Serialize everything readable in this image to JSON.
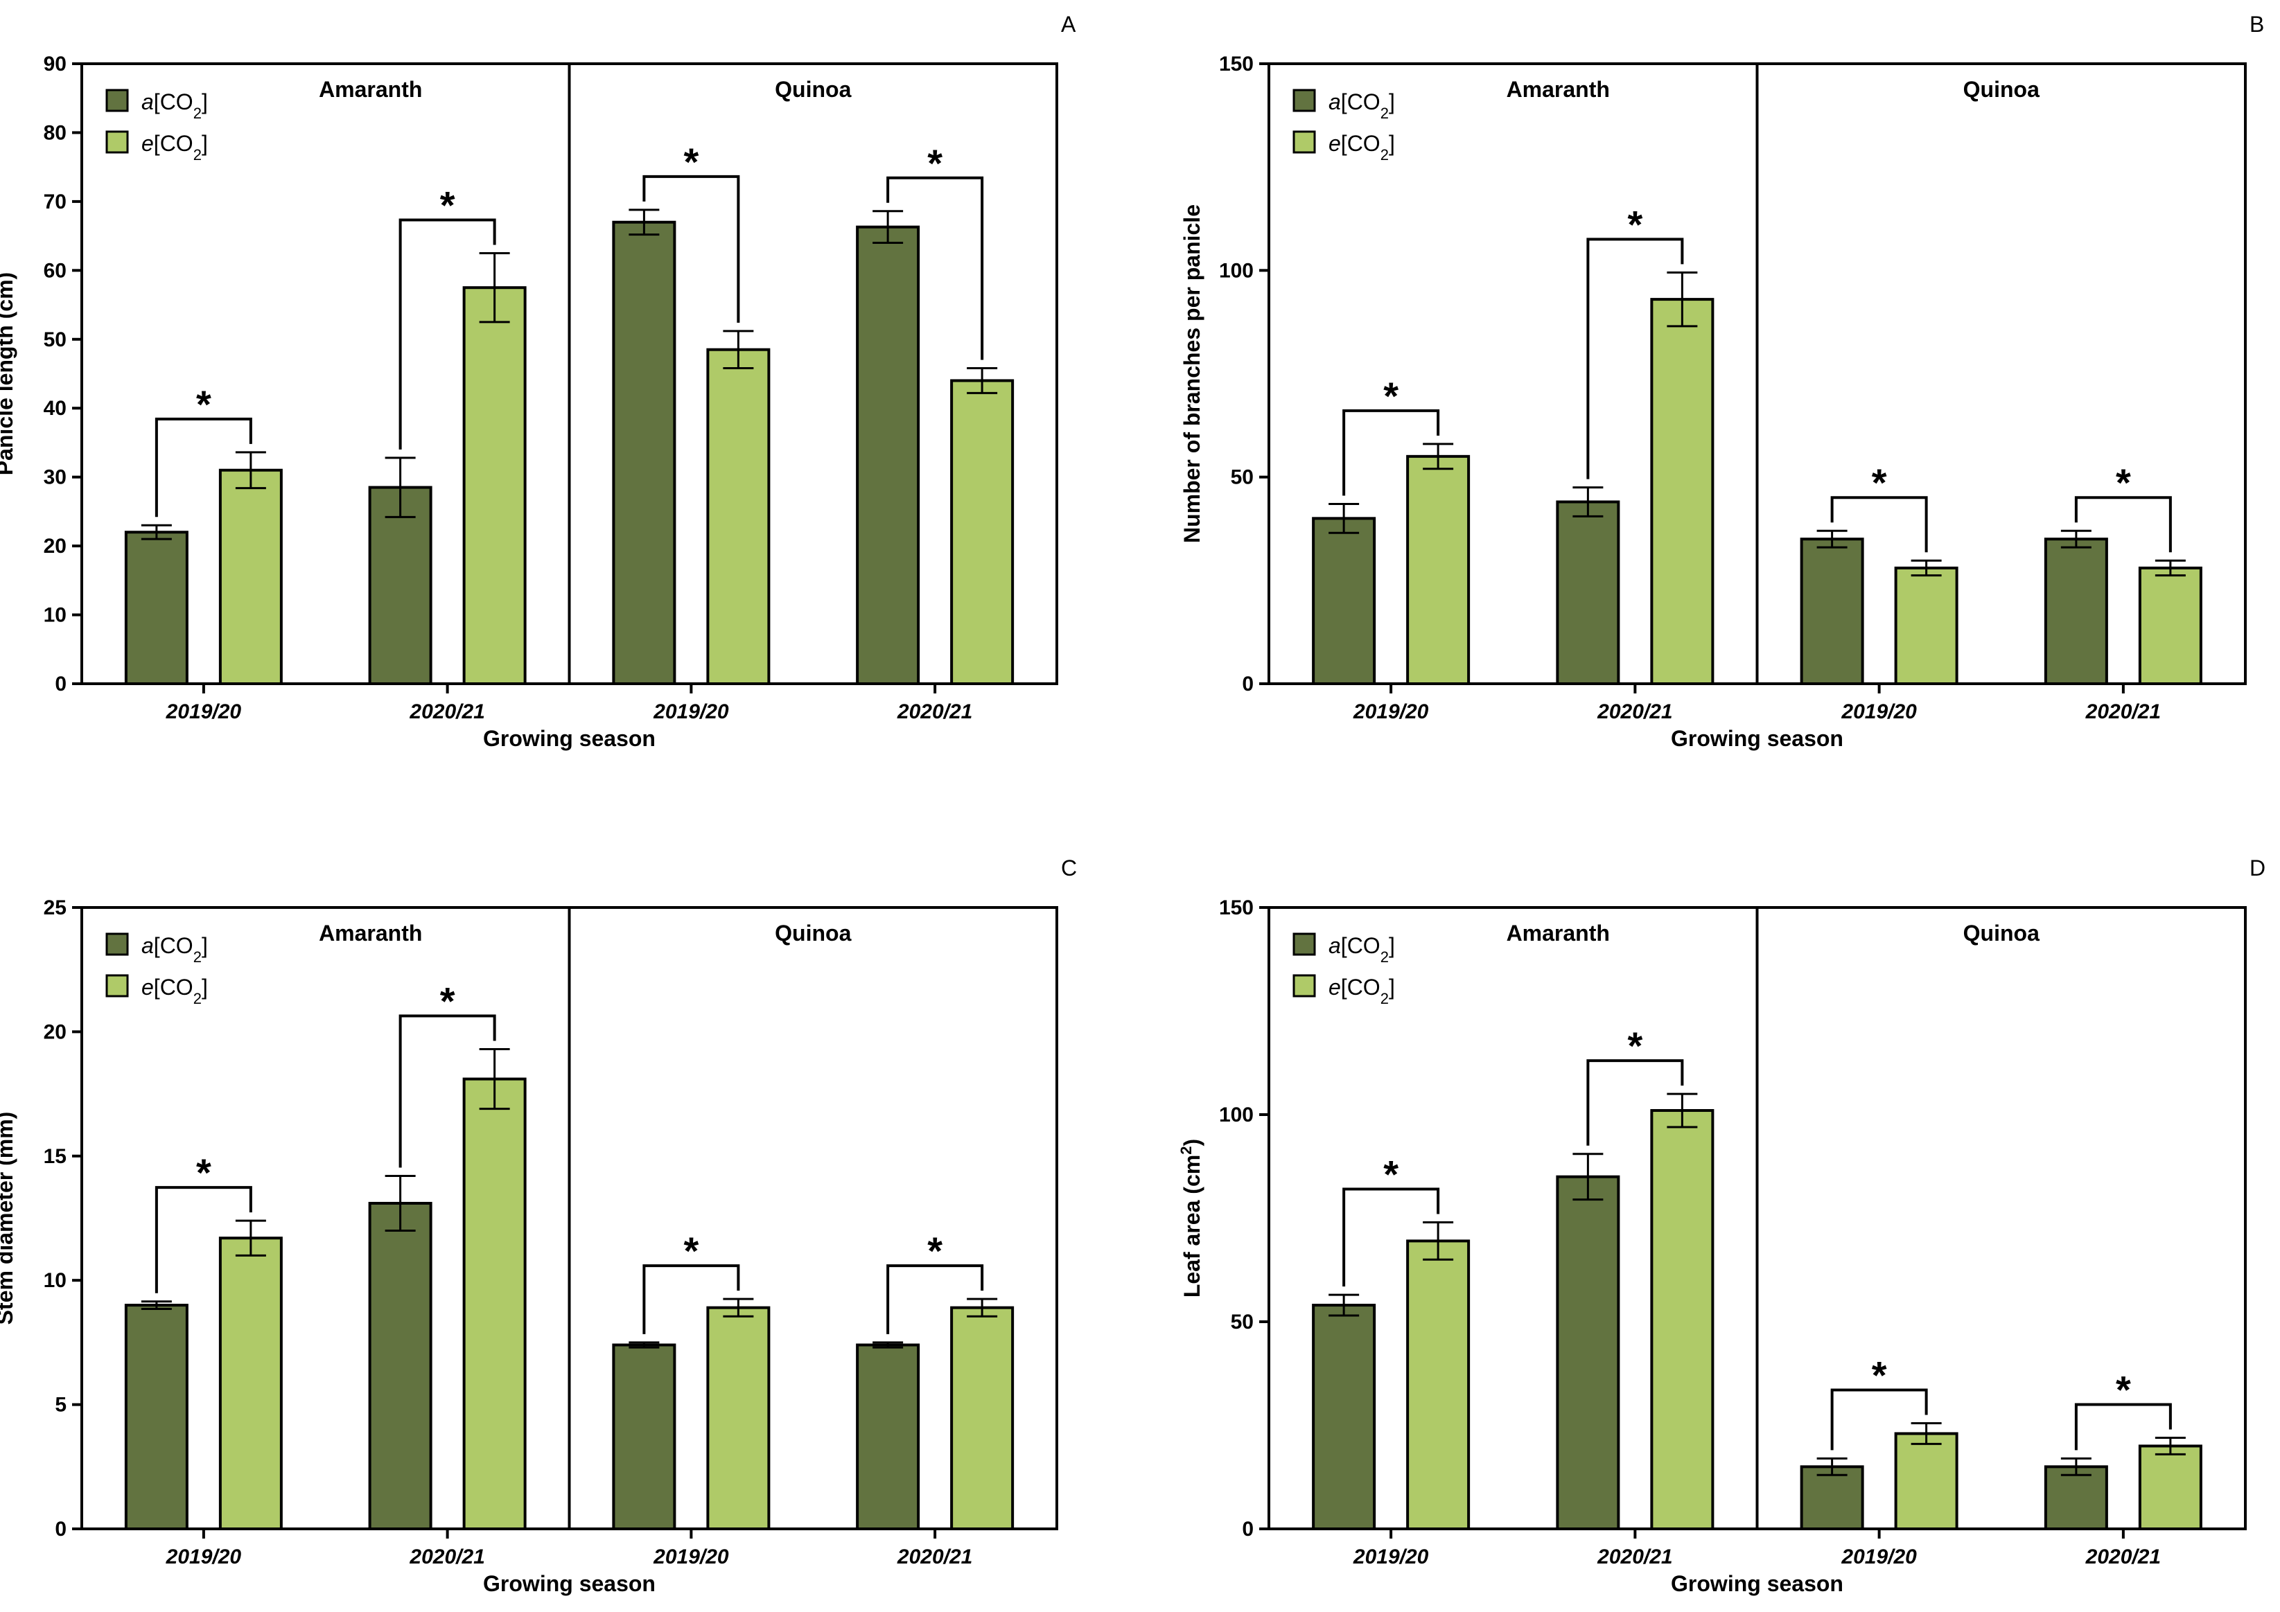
{
  "colors": {
    "a_co2": "#627340",
    "e_co2": "#afca68",
    "stroke": "#000000"
  },
  "legend": {
    "a_prefix": "a",
    "e_prefix": "e",
    "co2_text": "[CO",
    "co2_sub": "2",
    "co2_close": "]"
  },
  "crops": [
    "Amaranth",
    "Quinoa"
  ],
  "significance_marker": "*",
  "chart_data": [
    {
      "type": "bar",
      "panel": "A",
      "ylabel": "Panicle length (cm)",
      "xlabel": "Growing season",
      "ylim": [
        0,
        90
      ],
      "yticks": [
        0,
        10,
        20,
        30,
        40,
        50,
        60,
        70,
        80,
        90
      ],
      "categories": [
        "2019/20",
        "2020/21",
        "2019/20",
        "2020/21"
      ],
      "groups": [
        "Amaranth",
        "Amaranth",
        "Quinoa",
        "Quinoa"
      ],
      "series": [
        {
          "name": "a[CO2]",
          "values": [
            22,
            28.5,
            67,
            66.3
          ],
          "errors": [
            1,
            4.3,
            1.8,
            2.3
          ]
        },
        {
          "name": "e[CO2]",
          "values": [
            31,
            57.5,
            48.5,
            44
          ],
          "errors": [
            2.6,
            5,
            2.7,
            1.8
          ]
        }
      ],
      "significant": [
        true,
        true,
        true,
        true
      ]
    },
    {
      "type": "bar",
      "panel": "B",
      "ylabel": "Number of branches per panicle",
      "xlabel": "Growing season",
      "ylim": [
        0,
        150
      ],
      "yticks": [
        0,
        50,
        100,
        150
      ],
      "categories": [
        "2019/20",
        "2020/21",
        "2019/20",
        "2020/21"
      ],
      "groups": [
        "Amaranth",
        "Amaranth",
        "Quinoa",
        "Quinoa"
      ],
      "series": [
        {
          "name": "a[CO2]",
          "values": [
            40,
            44,
            35,
            35
          ],
          "errors": [
            3.5,
            3.5,
            2,
            2
          ]
        },
        {
          "name": "e[CO2]",
          "values": [
            55,
            93,
            28,
            28
          ],
          "errors": [
            3,
            6.5,
            1.8,
            1.8
          ]
        }
      ],
      "significant": [
        true,
        true,
        true,
        true
      ]
    },
    {
      "type": "bar",
      "panel": "C",
      "ylabel": "Stem diameter (mm)",
      "xlabel": "Growing season",
      "ylim": [
        0,
        25
      ],
      "yticks": [
        0,
        5,
        10,
        15,
        20,
        25
      ],
      "categories": [
        "2019/20",
        "2020/21",
        "2019/20",
        "2020/21"
      ],
      "groups": [
        "Amaranth",
        "Amaranth",
        "Quinoa",
        "Quinoa"
      ],
      "series": [
        {
          "name": "a[CO2]",
          "values": [
            9,
            13.1,
            7.4,
            7.4
          ],
          "errors": [
            0.15,
            1.1,
            0.1,
            0.1
          ]
        },
        {
          "name": "e[CO2]",
          "values": [
            11.7,
            18.1,
            8.9,
            8.9
          ],
          "errors": [
            0.7,
            1.2,
            0.35,
            0.35
          ]
        }
      ],
      "significant": [
        true,
        true,
        true,
        true
      ]
    },
    {
      "type": "bar",
      "panel": "D",
      "ylabel": "Leaf area (cm",
      "ylabel_sup": "2",
      "ylabel_end": ")",
      "xlabel": "Growing season",
      "ylim": [
        0,
        150
      ],
      "yticks": [
        0,
        50,
        100,
        150
      ],
      "categories": [
        "2019/20",
        "2020/21",
        "2019/20",
        "2020/21"
      ],
      "groups": [
        "Amaranth",
        "Amaranth",
        "Quinoa",
        "Quinoa"
      ],
      "series": [
        {
          "name": "a[CO2]",
          "values": [
            54,
            85,
            15,
            15
          ],
          "errors": [
            2.5,
            5.5,
            2,
            2
          ]
        },
        {
          "name": "e[CO2]",
          "values": [
            69.5,
            101,
            23,
            20
          ],
          "errors": [
            4.5,
            4,
            2.5,
            2
          ]
        }
      ],
      "significant": [
        true,
        true,
        true,
        true
      ]
    }
  ]
}
